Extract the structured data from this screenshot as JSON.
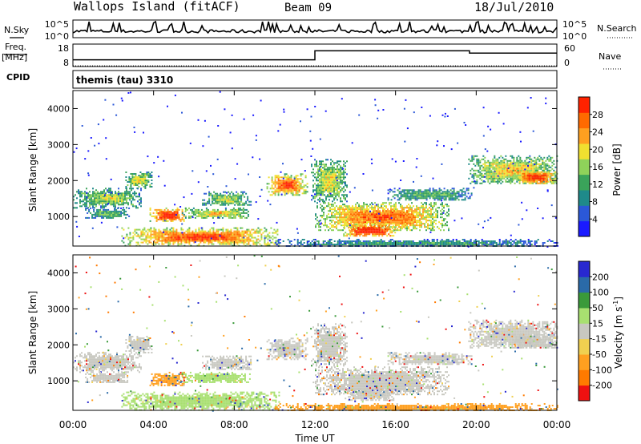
{
  "header": {
    "station": "Wallops Island (fitACF)",
    "beam": "Beam 09",
    "date": "18/Jul/2010"
  },
  "strip_labels": {
    "nsky": "N.Sky",
    "nsearch": "N.Search",
    "freq": "Freq.",
    "freq_unit": "[MHz]",
    "nave": "Nave",
    "cpid_label": "CPID",
    "cpid_value": "themis (tau) 3310"
  },
  "chart_data": [
    {
      "type": "line",
      "panel": "noise",
      "left_ticks": [
        "10^5",
        "10^0"
      ],
      "right_ticks": [
        "10^5",
        "10^0"
      ],
      "series": [
        {
          "name": "N.Sky"
        },
        {
          "name": "N.Search"
        }
      ]
    },
    {
      "type": "line",
      "panel": "frequency-nave",
      "left_ticks": [
        "18",
        "8"
      ],
      "right_ticks": [
        "60",
        "0"
      ],
      "series": [
        {
          "name": "Freq.",
          "x": [
            "00:00",
            "12:00",
            "12:00",
            "19:40",
            "19:40",
            "24:00"
          ],
          "values": [
            11,
            11,
            15,
            15,
            14,
            14
          ]
        },
        {
          "name": "Nave",
          "x": [
            "00:00",
            "24:00"
          ],
          "values": [
            2,
            2
          ]
        }
      ]
    },
    {
      "type": "heatmap",
      "panel": "power",
      "x_unit": "hours UT",
      "xlim": [
        0,
        24
      ],
      "ylabel": "Slant Range [km]",
      "ylim": [
        180,
        4500
      ],
      "yticks": [
        "1000",
        "2000",
        "3000",
        "4000"
      ],
      "colorbar_label": "Power [dB]",
      "colorbar_ticks": [
        "4",
        "8",
        "12",
        "16",
        "20",
        "24",
        "28"
      ],
      "colorbar_colors": [
        "#1a1aff",
        "#2b58d8",
        "#1f8a8a",
        "#3aa35a",
        "#8fd25a",
        "#f0e030",
        "#ffa020",
        "#ff6a00",
        "#ff2200"
      ],
      "regions": [
        {
          "t0": 0.0,
          "t1": 3.4,
          "r0": 1250,
          "r1": 1800,
          "level": 0.45
        },
        {
          "t0": 0.6,
          "t1": 2.8,
          "r0": 950,
          "r1": 1250,
          "level": 0.35
        },
        {
          "t0": 2.6,
          "t1": 3.9,
          "r0": 1800,
          "r1": 2250,
          "level": 0.5
        },
        {
          "t0": 3.8,
          "t1": 5.6,
          "r0": 850,
          "r1": 1250,
          "level": 0.85
        },
        {
          "t0": 5.4,
          "t1": 8.8,
          "r0": 950,
          "r1": 1250,
          "level": 0.55
        },
        {
          "t0": 6.4,
          "t1": 8.8,
          "r0": 1300,
          "r1": 1700,
          "level": 0.45
        },
        {
          "t0": 2.4,
          "t1": 10.2,
          "r0": 200,
          "r1": 700,
          "level": 0.75
        },
        {
          "t0": 9.6,
          "t1": 11.6,
          "r0": 1600,
          "r1": 2200,
          "level": 0.75
        },
        {
          "t0": 12.0,
          "t1": 18.6,
          "r0": 600,
          "r1": 1400,
          "level": 0.7
        },
        {
          "t0": 13.4,
          "t1": 16.0,
          "r0": 450,
          "r1": 800,
          "level": 0.9
        },
        {
          "t0": 11.8,
          "t1": 13.6,
          "r0": 1400,
          "r1": 2600,
          "level": 0.5
        },
        {
          "t0": 15.6,
          "t1": 19.8,
          "r0": 1450,
          "r1": 1800,
          "level": 0.35
        },
        {
          "t0": 19.6,
          "t1": 24.0,
          "r0": 1900,
          "r1": 2700,
          "level": 0.55
        },
        {
          "t0": 21.8,
          "t1": 24.0,
          "r0": 1900,
          "r1": 2300,
          "level": 0.8
        },
        {
          "t0": 10.0,
          "t1": 24.0,
          "r0": 180,
          "r1": 380,
          "level": 0.3
        }
      ]
    },
    {
      "type": "heatmap",
      "panel": "velocity",
      "x_unit": "hours UT",
      "xlim": [
        0,
        24
      ],
      "xticks": [
        "00:00",
        "04:00",
        "08:00",
        "12:00",
        "16:00",
        "20:00",
        "00:00"
      ],
      "xlabel": "Time UT",
      "ylabel": "Slant Range [km]",
      "ylim": [
        180,
        4500
      ],
      "yticks": [
        "1000",
        "2000",
        "3000",
        "4000"
      ],
      "colorbar_label": "Velocity [m s",
      "colorbar_label_sup": "-1",
      "colorbar_label_end": "]",
      "colorbar_ticks": [
        "-200",
        "-100",
        "-50",
        "-15",
        "15",
        "50",
        "100",
        "200"
      ],
      "colorbar_colors": [
        "#ee1111",
        "#ff7a00",
        "#ffa020",
        "#f0d050",
        "#c8c8c0",
        "#a8e070",
        "#3a9a3a",
        "#2a6aa8",
        "#2828d0"
      ],
      "regions": [
        {
          "t0": 0.0,
          "t1": 3.4,
          "r0": 1250,
          "r1": 1800,
          "color": "#c8c8c0"
        },
        {
          "t0": 0.6,
          "t1": 2.8,
          "r0": 950,
          "r1": 1250,
          "color": "#c8c8c0"
        },
        {
          "t0": 2.6,
          "t1": 3.9,
          "r0": 1800,
          "r1": 2250,
          "color": "#c8c8c0"
        },
        {
          "t0": 3.8,
          "t1": 5.6,
          "r0": 850,
          "r1": 1250,
          "color": "#ffa020"
        },
        {
          "t0": 5.4,
          "t1": 8.8,
          "r0": 950,
          "r1": 1250,
          "color": "#a8e070"
        },
        {
          "t0": 6.4,
          "t1": 8.8,
          "r0": 1300,
          "r1": 1700,
          "color": "#c8c8c0"
        },
        {
          "t0": 2.4,
          "t1": 10.2,
          "r0": 200,
          "r1": 700,
          "color": "#a8e070"
        },
        {
          "t0": 9.6,
          "t1": 11.6,
          "r0": 1600,
          "r1": 2200,
          "color": "#c8c8c0"
        },
        {
          "t0": 12.0,
          "t1": 18.6,
          "r0": 600,
          "r1": 1400,
          "color": "#c8c8c0"
        },
        {
          "t0": 13.4,
          "t1": 16.0,
          "r0": 450,
          "r1": 800,
          "color": "#c8c8c0"
        },
        {
          "t0": 11.8,
          "t1": 13.6,
          "r0": 1400,
          "r1": 2600,
          "color": "#c8c8c0"
        },
        {
          "t0": 15.6,
          "t1": 19.8,
          "r0": 1450,
          "r1": 1800,
          "color": "#c8c8c0"
        },
        {
          "t0": 19.6,
          "t1": 24.0,
          "r0": 1900,
          "r1": 2700,
          "color": "#c8c8c0"
        },
        {
          "t0": 21.8,
          "t1": 24.0,
          "r0": 1900,
          "r1": 2300,
          "color": "#c8c8c0"
        },
        {
          "t0": 10.0,
          "t1": 24.0,
          "r0": 180,
          "r1": 380,
          "color": "#ffa020"
        }
      ]
    }
  ]
}
